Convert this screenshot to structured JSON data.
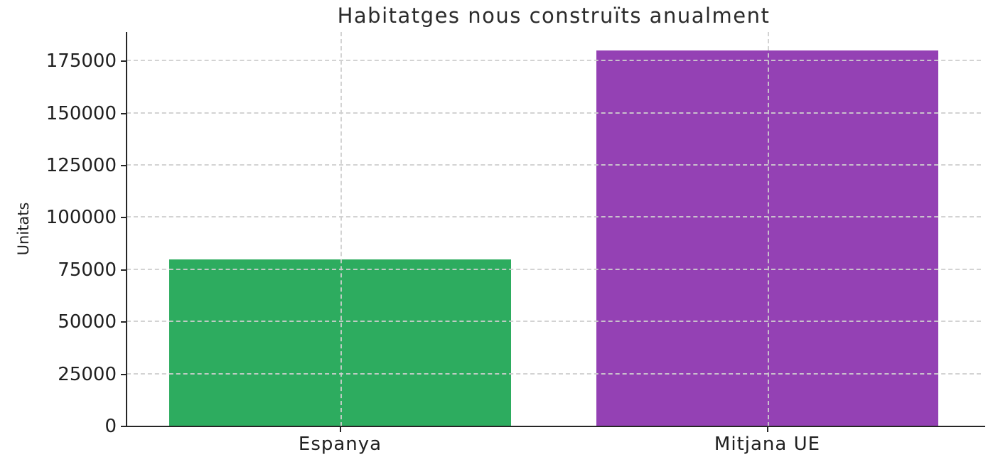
{
  "chart_data": {
    "type": "bar",
    "title": "Habitatges nous construïts anualment",
    "ylabel": "Unitats",
    "xlabel": "",
    "categories": [
      "Espanya",
      "Mitjana UE"
    ],
    "values": [
      80000,
      180000
    ],
    "bar_colors": [
      "#2dac5f",
      "#9441b4"
    ],
    "yticks": [
      0,
      25000,
      50000,
      75000,
      100000,
      125000,
      150000,
      175000
    ],
    "ylim": [
      0,
      189000
    ],
    "grid": "dashed gridlines on both axes, drawn above bars",
    "legend": "none",
    "background_color": "#ffffff",
    "text_color": "#202020"
  }
}
